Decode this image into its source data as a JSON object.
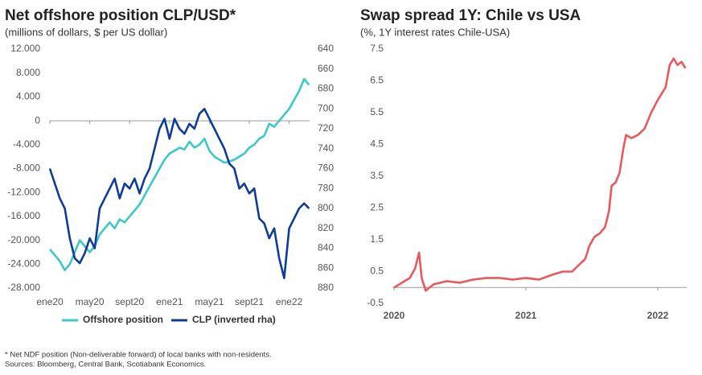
{
  "chart_data": [
    {
      "type": "line",
      "title": "Net offshore position CLP/USD*",
      "subtitle": "(millions of dollars, $ per US dollar)",
      "categories": [
        "ene20",
        null,
        null,
        null,
        null,
        null,
        null,
        null,
        "may20",
        null,
        null,
        null,
        null,
        null,
        null,
        null,
        "sept20",
        null,
        null,
        null,
        null,
        null,
        null,
        null,
        "ene21",
        null,
        null,
        null,
        null,
        null,
        null,
        null,
        "may21",
        null,
        null,
        null,
        null,
        null,
        null,
        null,
        "sept21",
        null,
        null,
        null,
        null,
        null,
        null,
        null,
        "ene22",
        null,
        null,
        null,
        null
      ],
      "series": [
        {
          "name": "Offshore position",
          "color": "#3cc8c8",
          "values": [
            -21500,
            -22500,
            -23500,
            -25000,
            -24000,
            -22000,
            -20000,
            -21000,
            -22000,
            -21000,
            -19000,
            -18000,
            -17000,
            -18000,
            -16500,
            -17000,
            -16000,
            -15000,
            -14000,
            -12500,
            -11000,
            -9500,
            -8000,
            -6500,
            -5500,
            -5000,
            -4500,
            -4800,
            -3500,
            -4500,
            -4000,
            -3000,
            -5000,
            -6000,
            -6500,
            -7000,
            -6800,
            -6500,
            -6000,
            -5500,
            -4500,
            -4000,
            -3000,
            -2500,
            -500,
            -1000,
            0,
            1000,
            2000,
            3500,
            5000,
            7000,
            6000
          ]
        },
        {
          "name": "CLP (inverted rha)",
          "color": "#0f3c96",
          "axis": "y2",
          "values": [
            760,
            775,
            790,
            800,
            830,
            850,
            855,
            845,
            830,
            840,
            800,
            790,
            780,
            770,
            790,
            775,
            780,
            770,
            785,
            770,
            760,
            740,
            720,
            710,
            730,
            710,
            720,
            725,
            715,
            720,
            705,
            700,
            710,
            720,
            730,
            740,
            755,
            760,
            780,
            775,
            785,
            780,
            810,
            815,
            830,
            820,
            850,
            870,
            820,
            810,
            800,
            795,
            800
          ]
        }
      ],
      "ylim": [
        -28000,
        12000
      ],
      "yticks": [
        {
          "value": -28000,
          "label": "-28.000"
        },
        {
          "value": -24000,
          "label": "-24.000"
        },
        {
          "value": -20000,
          "label": "-20.000"
        },
        {
          "value": -16000,
          "label": "-16.000"
        },
        {
          "value": -12000,
          "label": "-12.000"
        },
        {
          "value": -8000,
          "label": "-8.000"
        },
        {
          "value": -4000,
          "label": "-4.000"
        },
        0,
        {
          "value": 4000,
          "label": "4.000"
        },
        {
          "value": 8000,
          "label": "8.000"
        },
        {
          "value": 12000,
          "label": "12.000"
        }
      ],
      "y2lim": [
        880,
        640
      ],
      "y2ticks": [
        880,
        860,
        840,
        820,
        800,
        780,
        760,
        740,
        720,
        700,
        680,
        660,
        640
      ],
      "legend": "bottom"
    },
    {
      "type": "line",
      "title": "Swap spread 1Y: Chile vs USA",
      "subtitle": "(%, 1Y interest rates Chile-USA)",
      "x": [
        2020.0,
        2020.04,
        2020.08,
        2020.12,
        2020.16,
        2020.19,
        2020.21,
        2020.24,
        2020.3,
        2020.4,
        2020.5,
        2020.6,
        2020.7,
        2020.8,
        2020.9,
        2021.0,
        2021.1,
        2021.2,
        2021.28,
        2021.35,
        2021.4,
        2021.45,
        2021.48,
        2021.52,
        2021.56,
        2021.6,
        2021.63,
        2021.65,
        2021.68,
        2021.71,
        2021.74,
        2021.76,
        2021.8,
        2021.85,
        2021.9,
        2021.95,
        2022.0,
        2022.03,
        2022.06,
        2022.09,
        2022.12,
        2022.15,
        2022.18,
        2022.21
      ],
      "series": [
        {
          "name": "Swap spread 1Y",
          "color": "#e8595c",
          "values": [
            0.0,
            0.1,
            0.2,
            0.3,
            0.6,
            1.1,
            0.3,
            -0.1,
            0.1,
            0.2,
            0.15,
            0.25,
            0.3,
            0.3,
            0.25,
            0.3,
            0.25,
            0.4,
            0.5,
            0.5,
            0.7,
            0.9,
            1.3,
            1.6,
            1.7,
            1.9,
            2.4,
            3.2,
            3.3,
            3.6,
            4.4,
            4.8,
            4.7,
            4.8,
            5.0,
            5.5,
            5.9,
            6.1,
            6.3,
            7.0,
            7.2,
            7.0,
            7.1,
            6.9
          ]
        }
      ],
      "xlim": [
        2019.99,
        2022.22
      ],
      "xticks": [
        2020,
        2021,
        2022
      ],
      "ylim": [
        -0.5,
        7.5
      ],
      "yticks": [
        -0.5,
        0.5,
        1.5,
        2.5,
        3.5,
        4.5,
        5.5,
        6.5,
        7.5
      ]
    }
  ],
  "footnote": [
    "* Net NDF position (Non-deliverable forward) of local banks with non-residents.",
    "Sources: Bloomberg, Central Bank, Scotiabank Economics."
  ]
}
